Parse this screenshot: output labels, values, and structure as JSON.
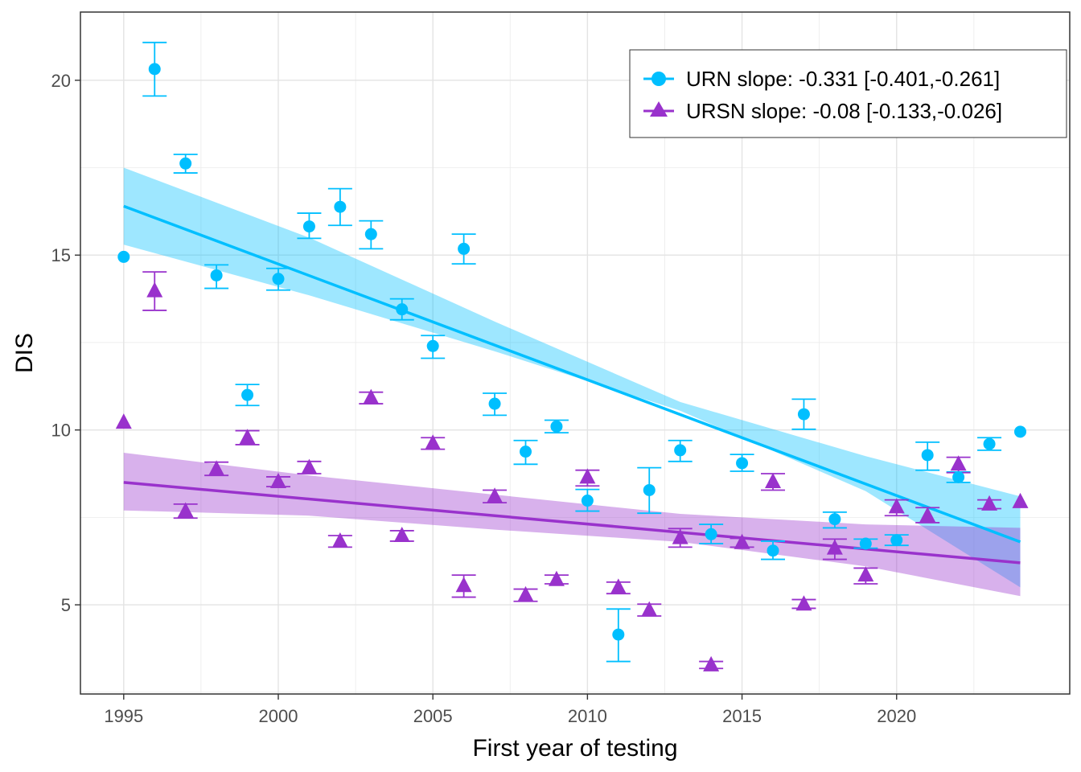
{
  "chart_data": {
    "type": "scatter",
    "xlabel": "First year of testing",
    "ylabel": "DIS",
    "xlim": [
      1993.6,
      2025.6
    ],
    "ylim": [
      2.45,
      21.95
    ],
    "x_ticks": [
      "1995",
      "2000",
      "2005",
      "2010",
      "2015",
      "2020"
    ],
    "y_ticks": [
      "5",
      "10",
      "15",
      "20"
    ],
    "grid": true,
    "legend_position": "top-right",
    "series": [
      {
        "name": "URN slope: -0.331 [-0.401,-0.261]",
        "color": "#00BFFF",
        "marker": "circle",
        "points": [
          {
            "x": 1995,
            "y": 14.95,
            "lo": null,
            "hi": null
          },
          {
            "x": 1996,
            "y": 20.32,
            "lo": 19.55,
            "hi": 21.08
          },
          {
            "x": 1997,
            "y": 17.62,
            "lo": 17.35,
            "hi": 17.88
          },
          {
            "x": 1998,
            "y": 14.42,
            "lo": 14.05,
            "hi": 14.72
          },
          {
            "x": 1999,
            "y": 11.0,
            "lo": 10.7,
            "hi": 11.3
          },
          {
            "x": 2000,
            "y": 14.32,
            "lo": 14.0,
            "hi": 14.62
          },
          {
            "x": 2001,
            "y": 15.82,
            "lo": 15.48,
            "hi": 16.2
          },
          {
            "x": 2002,
            "y": 16.38,
            "lo": 15.85,
            "hi": 16.9
          },
          {
            "x": 2003,
            "y": 15.6,
            "lo": 15.18,
            "hi": 15.98
          },
          {
            "x": 2004,
            "y": 13.45,
            "lo": 13.15,
            "hi": 13.75
          },
          {
            "x": 2005,
            "y": 12.4,
            "lo": 12.05,
            "hi": 12.7
          },
          {
            "x": 2006,
            "y": 15.18,
            "lo": 14.75,
            "hi": 15.6
          },
          {
            "x": 2007,
            "y": 10.75,
            "lo": 10.42,
            "hi": 11.05
          },
          {
            "x": 2008,
            "y": 9.38,
            "lo": 9.02,
            "hi": 9.7
          },
          {
            "x": 2009,
            "y": 10.1,
            "lo": 9.92,
            "hi": 10.28
          },
          {
            "x": 2010,
            "y": 7.98,
            "lo": 7.68,
            "hi": 8.3
          },
          {
            "x": 2011,
            "y": 4.15,
            "lo": 3.38,
            "hi": 4.88
          },
          {
            "x": 2012,
            "y": 8.28,
            "lo": 7.62,
            "hi": 8.92
          },
          {
            "x": 2013,
            "y": 9.42,
            "lo": 9.1,
            "hi": 9.7
          },
          {
            "x": 2014,
            "y": 7.02,
            "lo": 6.75,
            "hi": 7.3
          },
          {
            "x": 2015,
            "y": 9.05,
            "lo": 8.82,
            "hi": 9.3
          },
          {
            "x": 2016,
            "y": 6.55,
            "lo": 6.3,
            "hi": 6.82
          },
          {
            "x": 2017,
            "y": 10.45,
            "lo": 10.02,
            "hi": 10.88
          },
          {
            "x": 2018,
            "y": 7.45,
            "lo": 7.2,
            "hi": 7.65
          },
          {
            "x": 2019,
            "y": 6.75,
            "lo": 6.62,
            "hi": 6.88
          },
          {
            "x": 2020,
            "y": 6.85,
            "lo": 6.7,
            "hi": 7.0
          },
          {
            "x": 2021,
            "y": 9.28,
            "lo": 8.85,
            "hi": 9.65
          },
          {
            "x": 2022,
            "y": 8.65,
            "lo": 8.5,
            "hi": 8.8
          },
          {
            "x": 2023,
            "y": 9.6,
            "lo": 9.42,
            "hi": 9.78
          },
          {
            "x": 2024,
            "y": 9.95,
            "lo": null,
            "hi": null
          }
        ],
        "fit": {
          "x": [
            1995,
            2024
          ],
          "y": [
            16.4,
            6.8
          ]
        },
        "band": {
          "x": [
            1995,
            2001,
            2007,
            2013,
            2019,
            2024
          ],
          "lo": [
            15.3,
            13.85,
            12.25,
            10.55,
            8.25,
            5.5
          ],
          "hi": [
            17.5,
            15.5,
            13.1,
            10.8,
            9.25,
            8.1
          ]
        }
      },
      {
        "name": "URSN slope: -0.08 [-0.133,-0.026]",
        "color": "#9932CC",
        "marker": "triangle",
        "points": [
          {
            "x": 1995,
            "y": 10.22,
            "lo": null,
            "hi": null
          },
          {
            "x": 1996,
            "y": 13.98,
            "lo": 13.42,
            "hi": 14.52
          },
          {
            "x": 1997,
            "y": 7.68,
            "lo": 7.48,
            "hi": 7.88
          },
          {
            "x": 1998,
            "y": 8.88,
            "lo": 8.7,
            "hi": 9.08
          },
          {
            "x": 1999,
            "y": 9.78,
            "lo": 9.58,
            "hi": 9.98
          },
          {
            "x": 2000,
            "y": 8.52,
            "lo": 8.38,
            "hi": 8.66
          },
          {
            "x": 2001,
            "y": 8.92,
            "lo": 8.75,
            "hi": 9.1
          },
          {
            "x": 2002,
            "y": 6.82,
            "lo": 6.65,
            "hi": 6.98
          },
          {
            "x": 2003,
            "y": 10.92,
            "lo": 10.75,
            "hi": 11.08
          },
          {
            "x": 2004,
            "y": 6.98,
            "lo": 6.82,
            "hi": 7.12
          },
          {
            "x": 2005,
            "y": 9.62,
            "lo": 9.45,
            "hi": 9.78
          },
          {
            "x": 2006,
            "y": 5.55,
            "lo": 5.22,
            "hi": 5.85
          },
          {
            "x": 2007,
            "y": 8.1,
            "lo": 7.92,
            "hi": 8.28
          },
          {
            "x": 2008,
            "y": 5.28,
            "lo": 5.1,
            "hi": 5.45
          },
          {
            "x": 2009,
            "y": 5.72,
            "lo": 5.6,
            "hi": 5.85
          },
          {
            "x": 2010,
            "y": 8.65,
            "lo": 8.4,
            "hi": 8.85
          },
          {
            "x": 2011,
            "y": 5.5,
            "lo": 5.32,
            "hi": 5.65
          },
          {
            "x": 2012,
            "y": 4.85,
            "lo": 4.68,
            "hi": 5.02
          },
          {
            "x": 2013,
            "y": 6.92,
            "lo": 6.65,
            "hi": 7.18
          },
          {
            "x": 2014,
            "y": 3.28,
            "lo": 3.18,
            "hi": 3.38
          },
          {
            "x": 2015,
            "y": 6.78,
            "lo": 6.65,
            "hi": 6.9
          },
          {
            "x": 2016,
            "y": 8.52,
            "lo": 8.28,
            "hi": 8.75
          },
          {
            "x": 2017,
            "y": 5.02,
            "lo": 4.9,
            "hi": 5.15
          },
          {
            "x": 2018,
            "y": 6.62,
            "lo": 6.3,
            "hi": 6.88
          },
          {
            "x": 2019,
            "y": 5.85,
            "lo": 5.6,
            "hi": 6.05
          },
          {
            "x": 2020,
            "y": 7.8,
            "lo": 7.55,
            "hi": 8.0
          },
          {
            "x": 2021,
            "y": 7.55,
            "lo": 7.35,
            "hi": 7.78
          },
          {
            "x": 2022,
            "y": 9.02,
            "lo": 8.78,
            "hi": 9.22
          },
          {
            "x": 2023,
            "y": 7.88,
            "lo": 7.75,
            "hi": 8.0
          },
          {
            "x": 2024,
            "y": 7.95,
            "lo": null,
            "hi": null
          }
        ],
        "fit": {
          "x": [
            1995,
            2024
          ],
          "y": [
            8.5,
            6.2
          ]
        },
        "band": {
          "x": [
            1995,
            2001,
            2007,
            2013,
            2019,
            2024
          ],
          "lo": [
            7.7,
            7.55,
            7.15,
            6.8,
            6.1,
            5.25
          ],
          "hi": [
            9.35,
            8.7,
            8.15,
            7.6,
            7.3,
            7.2
          ]
        }
      }
    ]
  }
}
